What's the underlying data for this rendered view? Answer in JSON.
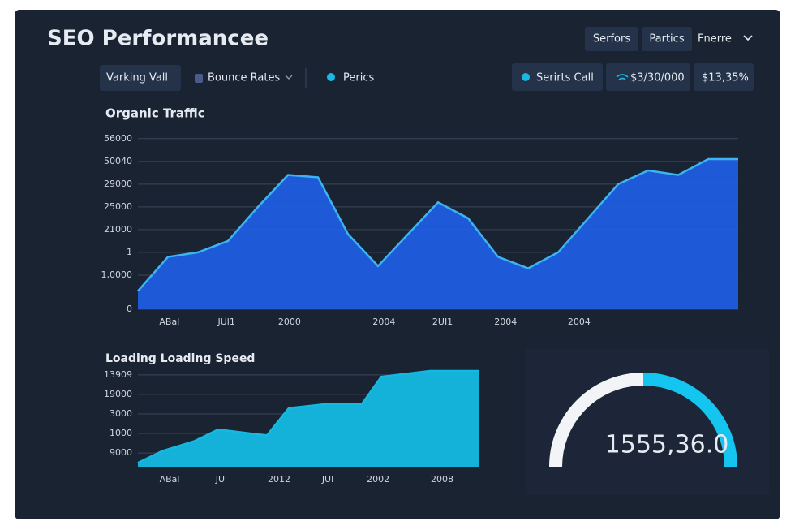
{
  "header": {
    "title": "SEO Performancee",
    "buttons": [
      "Serfors",
      "Partics"
    ],
    "menu": "Fnerre"
  },
  "toolbar": {
    "filters": [
      "Varking Vall",
      "Bounce Rates",
      "Perics"
    ],
    "stats": [
      "Serirts Call",
      "$3/30/000",
      "$13,35%"
    ]
  },
  "chart_data": [
    {
      "type": "area",
      "title": "Organic Traffic",
      "x": [
        0,
        1,
        2,
        3,
        4,
        5,
        6,
        7,
        8,
        9,
        10,
        11,
        12,
        13,
        14,
        15,
        16,
        17,
        18,
        19,
        20
      ],
      "values": [
        0.8,
        2.3,
        2.5,
        3.0,
        4.5,
        5.9,
        5.8,
        3.3,
        1.9,
        3.3,
        4.7,
        4.0,
        2.3,
        1.8,
        2.5,
        4.0,
        5.5,
        6.1,
        5.9,
        6.6,
        6.6
      ],
      "xlim": [
        0,
        20
      ],
      "ylim": [
        0,
        7.6
      ],
      "yticks": [
        0,
        {
          "value": 1.5,
          "label": "1,0000"
        },
        {
          "value": 2.5,
          "label": "1"
        },
        {
          "value": 3.5,
          "label": "21000"
        },
        {
          "value": 4.5,
          "label": "25000"
        },
        {
          "value": 5.5,
          "label": "29000"
        },
        {
          "value": 6.5,
          "label": "50040"
        },
        {
          "value": 7.5,
          "label": "56000"
        }
      ],
      "xticks": [
        {
          "value": 1.05,
          "label": "ABal"
        },
        {
          "value": 2.95,
          "label": "JUl1"
        },
        {
          "value": 5.05,
          "label": "2000"
        },
        {
          "value": 8.2,
          "label": "2004"
        },
        {
          "value": 10.15,
          "label": "2UI1"
        },
        {
          "value": 12.25,
          "label": "2004"
        },
        {
          "value": 14.7,
          "label": "2004"
        }
      ],
      "color": "#1f5ee0",
      "line_color": "#3cb4f2",
      "grid": true
    },
    {
      "type": "area",
      "title": "Loading Loading Speed",
      "x": [
        0,
        1,
        2.3,
        3.3,
        5.3,
        6.2,
        7.7,
        9.2,
        10.0,
        12.0,
        14.0
      ],
      "values": [
        0.2,
        0.8,
        1.3,
        1.9,
        1.6,
        3.0,
        3.2,
        3.2,
        4.6,
        4.9,
        4.9
      ],
      "xlim": [
        0,
        14
      ],
      "ylim": [
        0,
        4.9
      ],
      "yticks": [
        {
          "value": 0.7,
          "label": "9000"
        },
        {
          "value": 1.7,
          "label": "1000"
        },
        {
          "value": 2.7,
          "label": "3000"
        },
        {
          "value": 3.7,
          "label": "19000"
        },
        {
          "value": 4.7,
          "label": "13909"
        }
      ],
      "xticks": [
        {
          "value": 1.3,
          "label": "ABal"
        },
        {
          "value": 3.43,
          "label": "JUl"
        },
        {
          "value": 5.8,
          "label": "2012"
        },
        {
          "value": 7.8,
          "label": "JUl"
        },
        {
          "value": 9.87,
          "label": "2002"
        },
        {
          "value": 12.5,
          "label": "2008"
        }
      ],
      "color": "#14b9e2",
      "line_color": "#14b9e2",
      "grid": true
    }
  ],
  "gauge": {
    "label": "1555,36.0"
  }
}
